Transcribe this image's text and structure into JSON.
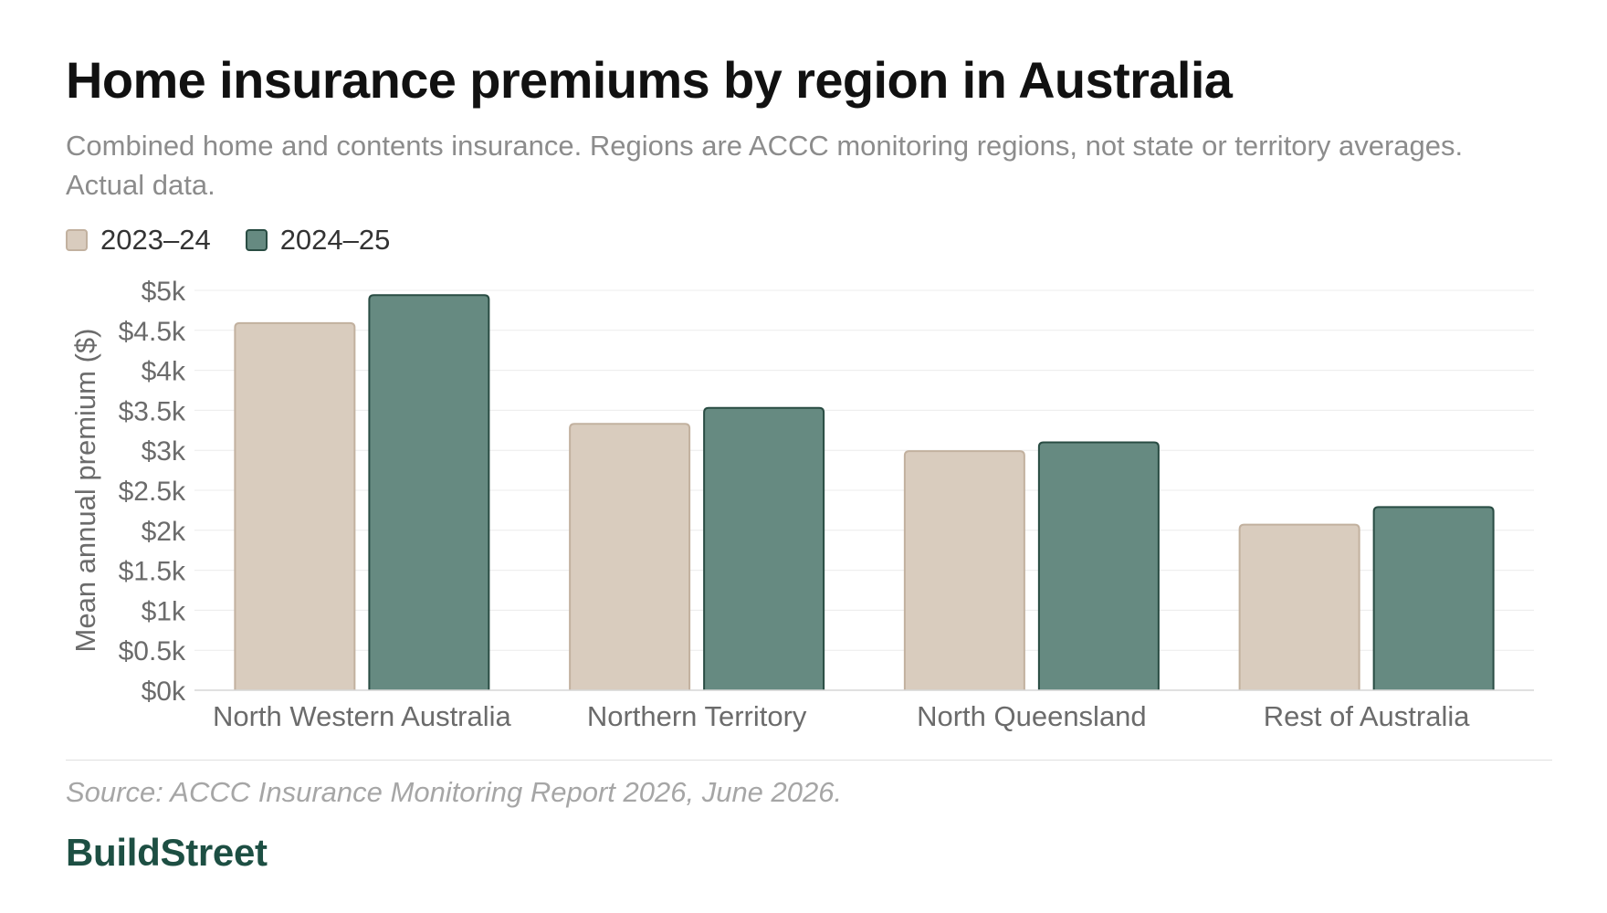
{
  "header": {
    "title": "Home insurance premiums by region in Australia",
    "subtitle": "Combined home and contents insurance. Regions are ACCC monitoring regions, not state or territory averages. Actual data."
  },
  "colors": {
    "series_2023_24": "#d9ccbe",
    "series_2023_24_border": "#c2b19f",
    "series_2024_25": "#668a81",
    "series_2024_25_border": "#294c43",
    "gridline": "#ececec",
    "axis_text": "#6b6b6b",
    "brand": "#1d4f43"
  },
  "chart_data": {
    "type": "bar",
    "title": "Home insurance premiums by region in Australia",
    "subtitle": "Combined home and contents insurance. Regions are ACCC monitoring regions, not state or territory averages. Actual data.",
    "ylabel": "Mean annual premium ($)",
    "xlabel": "",
    "ylim": [
      0,
      5000
    ],
    "yticks": [
      0,
      500,
      1000,
      1500,
      2000,
      2500,
      3000,
      3500,
      4000,
      4500,
      5000
    ],
    "ytick_labels": [
      "$0k",
      "$0.5k",
      "$1k",
      "$1.5k",
      "$2k",
      "$2.5k",
      "$3k",
      "$3.5k",
      "$4k",
      "$4.5k",
      "$5k"
    ],
    "categories": [
      "North Western Australia",
      "Northern Territory",
      "North Queensland",
      "Rest of Australia"
    ],
    "series": [
      {
        "name": "2023–24",
        "values": [
          4590,
          3330,
          2990,
          2070
        ]
      },
      {
        "name": "2024–25",
        "values": [
          4940,
          3530,
          3100,
          2290
        ]
      }
    ],
    "grid": true,
    "legend": "top-left"
  },
  "footer": {
    "source": "Source: ACCC Insurance Monitoring Report 2026, June 2026.",
    "brand": "BuildStreet"
  }
}
